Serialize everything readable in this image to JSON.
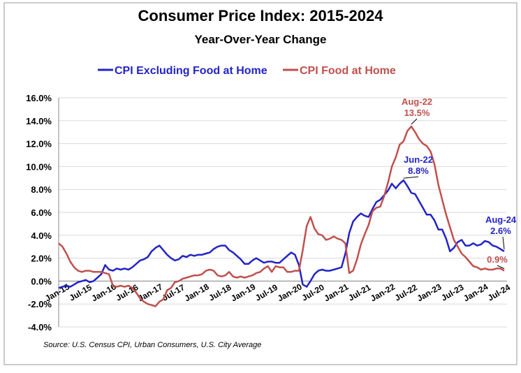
{
  "chart_data": {
    "type": "line",
    "title": "Consumer Price Index: 2015-2024",
    "subtitle": "Year-Over-Year Change",
    "source": "Source: U.S. Census CPI, Urban Consumers, U.S. City Average",
    "categories": [
      "Jan-15",
      null,
      null,
      null,
      null,
      null,
      "Jul-15",
      null,
      null,
      null,
      null,
      null,
      "Jan-16",
      null,
      null,
      null,
      null,
      null,
      "Jul-16",
      null,
      null,
      null,
      null,
      null,
      "Jan-17",
      null,
      null,
      null,
      null,
      null,
      "Jul-17",
      null,
      null,
      null,
      null,
      null,
      "Jan-18",
      null,
      null,
      null,
      null,
      null,
      "Jul-18",
      null,
      null,
      null,
      null,
      null,
      "Jan-19",
      null,
      null,
      null,
      null,
      null,
      "Jul-19",
      null,
      null,
      null,
      null,
      null,
      "Jan-20",
      null,
      null,
      null,
      null,
      null,
      "Jul-20",
      null,
      null,
      null,
      null,
      null,
      "Jan-21",
      null,
      null,
      null,
      null,
      null,
      "Jul-21",
      null,
      null,
      null,
      null,
      null,
      "Jan-22",
      null,
      null,
      null,
      null,
      null,
      "Jul-22",
      null,
      null,
      null,
      null,
      null,
      "Jan-23",
      null,
      null,
      null,
      null,
      null,
      "Jul-23",
      null,
      null,
      null,
      null,
      null,
      "Jan-24",
      null,
      null,
      null,
      null,
      null,
      "Jul-24",
      null
    ],
    "series": [
      {
        "name": "CPI Excluding Food at Home",
        "color": "#2323c8",
        "values": [
          -0.6,
          -0.5,
          -0.4,
          -0.5,
          -0.3,
          -0.1,
          0.0,
          0.1,
          -0.1,
          0.0,
          0.3,
          0.6,
          1.4,
          1.0,
          0.9,
          1.1,
          1.0,
          1.1,
          1.0,
          1.2,
          1.5,
          1.8,
          1.9,
          2.1,
          2.6,
          2.9,
          3.1,
          2.7,
          2.3,
          2.0,
          1.8,
          1.9,
          2.2,
          2.1,
          2.3,
          2.2,
          2.3,
          2.3,
          2.4,
          2.5,
          2.8,
          3.0,
          3.1,
          3.1,
          2.7,
          2.5,
          2.2,
          1.9,
          1.5,
          1.5,
          1.8,
          2.0,
          1.8,
          1.6,
          1.7,
          1.7,
          1.6,
          1.6,
          1.9,
          2.2,
          2.5,
          2.3,
          1.4,
          -0.3,
          -0.5,
          0.0,
          0.6,
          0.9,
          1.0,
          0.9,
          0.9,
          1.0,
          1.1,
          1.2,
          2.4,
          4.2,
          5.2,
          5.6,
          5.9,
          5.7,
          5.6,
          6.3,
          6.9,
          7.1,
          7.5,
          7.9,
          8.5,
          8.1,
          8.5,
          8.8,
          8.3,
          7.7,
          7.6,
          7.0,
          6.4,
          5.8,
          5.8,
          5.3,
          4.5,
          4.5,
          3.7,
          2.6,
          2.9,
          3.4,
          3.6,
          3.1,
          3.1,
          3.3,
          3.1,
          3.2,
          3.5,
          3.4,
          3.1,
          3.0,
          2.8,
          2.6
        ]
      },
      {
        "name": "CPI Food at Home",
        "color": "#c0504d",
        "values": [
          3.3,
          3.0,
          2.4,
          1.7,
          1.2,
          0.9,
          0.8,
          0.9,
          0.9,
          0.8,
          0.8,
          0.8,
          0.7,
          0.6,
          -0.4,
          -0.5,
          -0.4,
          -0.5,
          -0.4,
          -0.6,
          -1.0,
          -1.5,
          -1.8,
          -2.0,
          -2.1,
          -2.2,
          -1.8,
          -1.6,
          -0.8,
          -0.6,
          -0.1,
          0.0,
          0.2,
          0.3,
          0.4,
          0.5,
          0.5,
          0.6,
          0.9,
          1.0,
          0.9,
          0.5,
          0.4,
          0.5,
          0.8,
          0.4,
          0.3,
          0.4,
          0.3,
          0.4,
          0.5,
          0.7,
          0.8,
          1.1,
          1.3,
          0.8,
          1.3,
          1.2,
          1.2,
          0.8,
          0.8,
          0.9,
          0.9,
          2.7,
          4.8,
          5.6,
          4.6,
          4.1,
          4.0,
          3.6,
          3.7,
          3.9,
          3.7,
          3.6,
          3.3,
          0.7,
          0.9,
          1.9,
          3.2,
          4.1,
          4.9,
          6.1,
          6.4,
          6.5,
          7.4,
          8.6,
          10.0,
          10.8,
          11.9,
          12.2,
          13.1,
          13.5,
          13.0,
          12.4,
          12.0,
          11.8,
          11.3,
          10.2,
          8.4,
          7.1,
          5.8,
          4.7,
          3.6,
          3.0,
          2.4,
          2.1,
          1.7,
          1.3,
          1.2,
          1.0,
          1.1,
          1.0,
          1.0,
          1.1,
          1.1,
          0.9
        ]
      }
    ],
    "annotations": [
      {
        "lines": [
          "Aug-22",
          "13.5%"
        ],
        "color": "#c0504d"
      },
      {
        "lines": [
          "Jun-22",
          "8.8%"
        ],
        "color": "#2323c8"
      },
      {
        "lines": [
          "Aug-24",
          "2.6%"
        ],
        "color": "#2323c8"
      },
      {
        "lines": [
          "0.9%"
        ],
        "color": "#c0504d"
      }
    ],
    "ylim": [
      -4,
      16
    ],
    "yticks": [
      {
        "value": -4,
        "label": "-4.0%"
      },
      {
        "value": -2,
        "label": "-2.0%"
      },
      {
        "value": 0,
        "label": "0.0%"
      },
      {
        "value": 2,
        "label": "2.0%"
      },
      {
        "value": 4,
        "label": "4.0%"
      },
      {
        "value": 6,
        "label": "6.0%"
      },
      {
        "value": 8,
        "label": "8.0%"
      },
      {
        "value": 10,
        "label": "10.0%"
      },
      {
        "value": 12,
        "label": "12.0%"
      },
      {
        "value": 14,
        "label": "14.0%"
      },
      {
        "value": 16,
        "label": "16.0%"
      }
    ],
    "grid": true
  }
}
